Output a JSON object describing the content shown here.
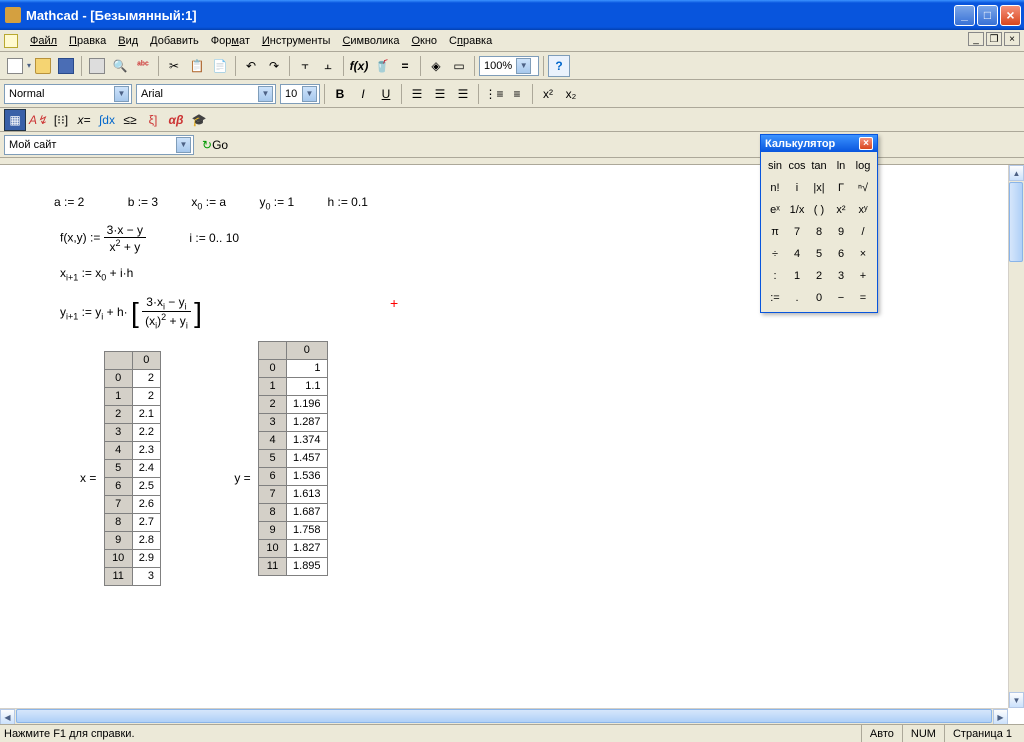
{
  "title": "Mathcad - [Безымянный:1]",
  "menu": [
    "Файл",
    "Правка",
    "Вид",
    "Добавить",
    "Формат",
    "Инструменты",
    "Символика",
    "Окно",
    "Справка"
  ],
  "toolbar1": {
    "zoom": "100%"
  },
  "toolbar2": {
    "style": "Normal",
    "font": "Arial",
    "size": "10"
  },
  "toolbar3": {
    "site": "Мой сайт",
    "go": "Go"
  },
  "palette": {
    "title": "Калькулятор",
    "rows": [
      [
        "sin",
        "cos",
        "tan",
        "ln",
        "log"
      ],
      [
        "n!",
        "i",
        "|x|",
        "Γ",
        "ⁿ√"
      ],
      [
        "eˣ",
        "1/x",
        "( )",
        "x²",
        "xʸ"
      ],
      [
        "π",
        "7",
        "8",
        "9",
        "/"
      ],
      [
        "÷",
        "4",
        "5",
        "6",
        "×"
      ],
      [
        ":",
        "1",
        "2",
        "3",
        "+"
      ],
      [
        ":=",
        ".",
        "0",
        "−",
        "="
      ]
    ]
  },
  "defs": {
    "a": "a := 2",
    "b": "b := 3",
    "x0": "x",
    "x0sub": "0",
    "x0v": " := a",
    "y0": "y",
    "y0sub": "0",
    "y0v": " := 1",
    "h": "h := 0.1",
    "f": "f(x,y) := ",
    "fnum": "3·x − y",
    "fden": "x",
    "fden2": " + y",
    "i": "i := 0.. 10",
    "xi": "x",
    "xisub": "i+1",
    "xieq": " := x",
    "xisub2": "0",
    "xiend": " + i·h",
    "yi": "y",
    "yisub": "i+1",
    "yieq": " := y",
    "yisub2": "i",
    "yih": " + h·",
    "ynum": "3·x",
    "ynumsub": "i",
    "ynumy": " − y",
    "ynumysub": "i",
    "yden1": "(x",
    "ydensub": "i",
    "yden2": ")",
    "yden3": " + y",
    "ydensub2": "i"
  },
  "xlabel": "x =",
  "ylabel": "y =",
  "xdata": {
    "header": "0",
    "rows": [
      [
        "0",
        "2"
      ],
      [
        "1",
        "2"
      ],
      [
        "2",
        "2.1"
      ],
      [
        "3",
        "2.2"
      ],
      [
        "4",
        "2.3"
      ],
      [
        "5",
        "2.4"
      ],
      [
        "6",
        "2.5"
      ],
      [
        "7",
        "2.6"
      ],
      [
        "8",
        "2.7"
      ],
      [
        "9",
        "2.8"
      ],
      [
        "10",
        "2.9"
      ],
      [
        "11",
        "3"
      ]
    ]
  },
  "ydata": {
    "header": "0",
    "rows": [
      [
        "0",
        "1"
      ],
      [
        "1",
        "1.1"
      ],
      [
        "2",
        "1.196"
      ],
      [
        "3",
        "1.287"
      ],
      [
        "4",
        "1.374"
      ],
      [
        "5",
        "1.457"
      ],
      [
        "6",
        "1.536"
      ],
      [
        "7",
        "1.613"
      ],
      [
        "8",
        "1.687"
      ],
      [
        "9",
        "1.758"
      ],
      [
        "10",
        "1.827"
      ],
      [
        "11",
        "1.895"
      ]
    ]
  },
  "status": {
    "help": "Нажмите F1 для справки.",
    "auto": "Авто",
    "num": "NUM",
    "page": "Страница 1"
  }
}
